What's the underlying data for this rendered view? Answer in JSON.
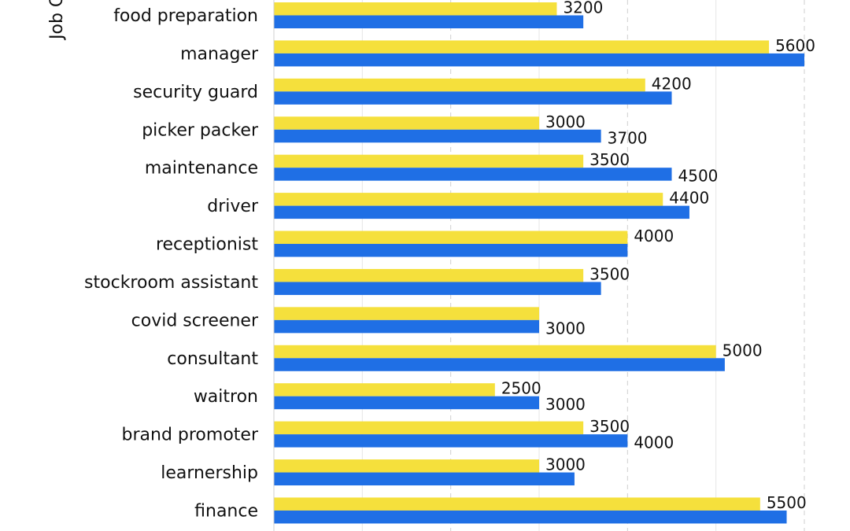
{
  "chart_data": {
    "type": "bar",
    "orientation": "horizontal",
    "ylabel": "Job C",
    "categories": [
      "food preparation",
      "manager",
      "security guard",
      "picker packer",
      "maintenance",
      "driver",
      "receptionist",
      "stockroom assistant",
      "covid screener",
      "consultant",
      "waitron",
      "brand promoter",
      "learnership",
      "finance"
    ],
    "series": [
      {
        "color": "#f5e03c",
        "values": [
          3200,
          5600,
          4200,
          3000,
          3500,
          4400,
          4000,
          3500,
          3000,
          5000,
          2500,
          3500,
          3000,
          5500
        ],
        "labels": [
          "3200",
          "5600",
          "4200",
          "3000",
          "3500",
          "4400",
          "4000",
          "3500",
          "",
          "5000",
          "2500",
          "3500",
          "3000",
          "5500"
        ]
      },
      {
        "color": "#1f6fe5",
        "values": [
          3500,
          6000,
          4500,
          3700,
          4500,
          4700,
          4000,
          3700,
          3000,
          5100,
          3000,
          4000,
          3400,
          5800
        ],
        "labels": [
          "",
          "",
          "",
          "3700",
          "4500",
          "",
          "",
          "",
          "3000",
          "",
          "3000",
          "4000",
          "",
          ""
        ]
      }
    ],
    "xlim": [
      0,
      6000
    ],
    "gridlines": [
      2000,
      4000,
      6000
    ],
    "grid": true,
    "legend": "none"
  }
}
